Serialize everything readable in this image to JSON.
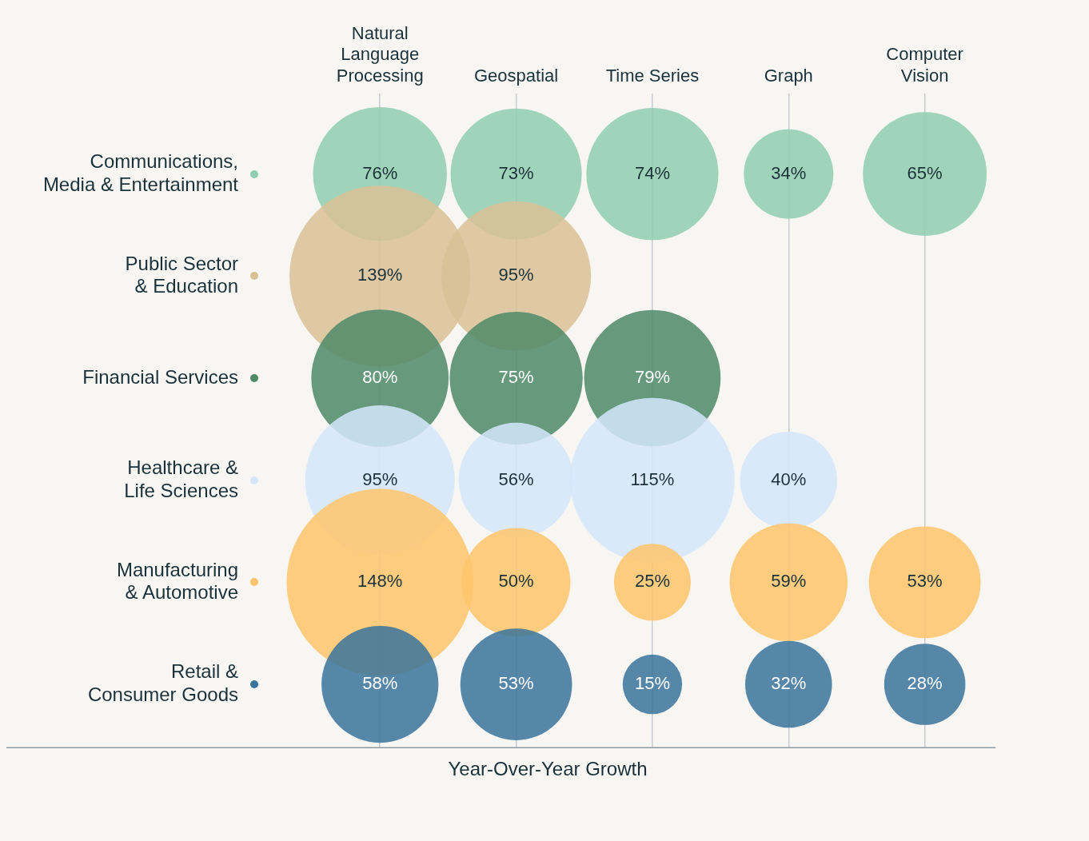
{
  "chart_data": {
    "type": "other",
    "xlabel": "Year-Over-Year Growth",
    "categories": [
      "Natural\nLanguage\nProcessing",
      "Geospatial",
      "Time Series",
      "Graph",
      "Computer\nVision"
    ],
    "y_categories": [
      "Communications,\nMedia & Entertainment",
      "Public Sector\n& Education",
      "Financial Services",
      "Healthcare &\nLife Sciences",
      "Manufacturing\n& Automotive",
      "Retail &\nConsumer Goods"
    ],
    "series": [
      {
        "color": "#8fceb0",
        "values": [
          76,
          73,
          74,
          34,
          65
        ],
        "value_labels": [
          "76%",
          "73%",
          "74%",
          "34%",
          "65%"
        ]
      },
      {
        "color": "#d9c196",
        "values": [
          139,
          95,
          null,
          null,
          null
        ],
        "value_labels": [
          "139%",
          "95%",
          null,
          null,
          null
        ]
      },
      {
        "color": "#4d8a68",
        "values": [
          80,
          75,
          79,
          null,
          null
        ],
        "value_labels": [
          "80%",
          "75%",
          "79%",
          null,
          null
        ]
      },
      {
        "color": "#d5e6fc",
        "values": [
          95,
          56,
          115,
          40,
          null
        ],
        "value_labels": [
          "95%",
          "56%",
          "115%",
          "40%",
          null
        ]
      },
      {
        "color": "#ffc46b",
        "values": [
          148,
          50,
          25,
          59,
          53
        ],
        "value_labels": [
          "148%",
          "50%",
          "25%",
          "59%",
          "53%"
        ]
      },
      {
        "color": "#3a739b",
        "values": [
          58,
          53,
          15,
          32,
          28
        ],
        "value_labels": [
          "58%",
          "53%",
          "15%",
          "32%",
          "28%"
        ]
      }
    ]
  }
}
